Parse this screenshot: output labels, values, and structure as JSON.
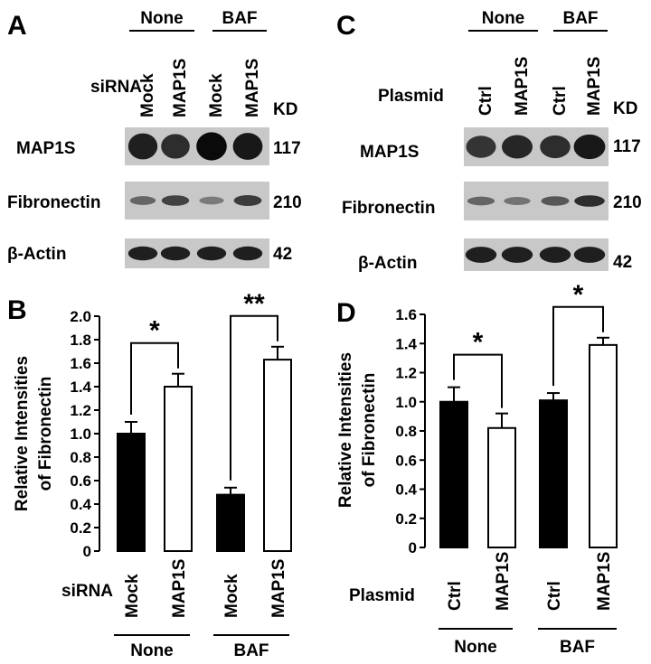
{
  "panels": {
    "A": {
      "letter": "A",
      "groups": [
        "None",
        "BAF"
      ],
      "row_label": "siRNA",
      "lanes": [
        "Mock",
        "MAP1S",
        "Mock",
        "MAP1S"
      ],
      "kd_label": "KD",
      "blots": [
        {
          "name": "MAP1S",
          "kd": "117",
          "intensity": [
            0.85,
            0.75,
            1.0,
            0.9
          ]
        },
        {
          "name": "Fibronectin",
          "kd": "210",
          "intensity": [
            0.35,
            0.6,
            0.2,
            0.65
          ]
        },
        {
          "name": "β-Actin",
          "kd": "42",
          "intensity": [
            0.85,
            0.85,
            0.85,
            0.85
          ]
        }
      ]
    },
    "B": {
      "letter": "B",
      "row_label": "siRNA",
      "groups": [
        "None",
        "BAF"
      ],
      "chart_data": {
        "type": "bar",
        "ylabel_line1": "Relative Intensities",
        "ylabel_line2": "of Fibronectin",
        "ylim": [
          0,
          2.0
        ],
        "yticks": [
          "0",
          "0.2",
          "0.4",
          "0.6",
          "0.8",
          "1.0",
          "1.2",
          "1.4",
          "1.6",
          "1.8",
          "2.0"
        ],
        "categories": [
          "Mock",
          "MAP1S",
          "Mock",
          "MAP1S"
        ],
        "values": [
          1.0,
          1.4,
          0.48,
          1.63
        ],
        "errors": [
          0.1,
          0.11,
          0.06,
          0.11
        ],
        "fill": [
          "black",
          "white",
          "black",
          "white"
        ],
        "significance": [
          {
            "from": 0,
            "to": 1,
            "label": "*"
          },
          {
            "from": 2,
            "to": 3,
            "label": "**"
          }
        ]
      }
    },
    "C": {
      "letter": "C",
      "groups": [
        "None",
        "BAF"
      ],
      "row_label": "Plasmid",
      "lanes": [
        "Ctrl",
        "MAP1S",
        "Ctrl",
        "MAP1S"
      ],
      "kd_label": "KD",
      "blots": [
        {
          "name": "MAP1S",
          "kd": "117",
          "intensity": [
            0.7,
            0.8,
            0.75,
            0.9
          ]
        },
        {
          "name": "Fibronectin",
          "kd": "210",
          "intensity": [
            0.35,
            0.25,
            0.45,
            0.75
          ]
        },
        {
          "name": "β-Actin",
          "kd": "42",
          "intensity": [
            0.85,
            0.85,
            0.85,
            0.85
          ]
        }
      ]
    },
    "D": {
      "letter": "D",
      "row_label": "Plasmid",
      "groups": [
        "None",
        "BAF"
      ],
      "chart_data": {
        "type": "bar",
        "ylabel_line1": "Relative Intensities",
        "ylabel_line2": "of Fibronectin",
        "ylim": [
          0,
          1.6
        ],
        "yticks": [
          "0",
          "0.2",
          "0.4",
          "0.6",
          "0.8",
          "1.0",
          "1.2",
          "1.4",
          "1.6"
        ],
        "categories": [
          "Ctrl",
          "MAP1S",
          "Ctrl",
          "MAP1S"
        ],
        "values": [
          1.0,
          0.82,
          1.01,
          1.39
        ],
        "errors": [
          0.1,
          0.1,
          0.05,
          0.05
        ],
        "fill": [
          "black",
          "white",
          "black",
          "white"
        ],
        "significance": [
          {
            "from": 0,
            "to": 1,
            "label": "*"
          },
          {
            "from": 2,
            "to": 3,
            "label": "*"
          }
        ]
      }
    }
  }
}
